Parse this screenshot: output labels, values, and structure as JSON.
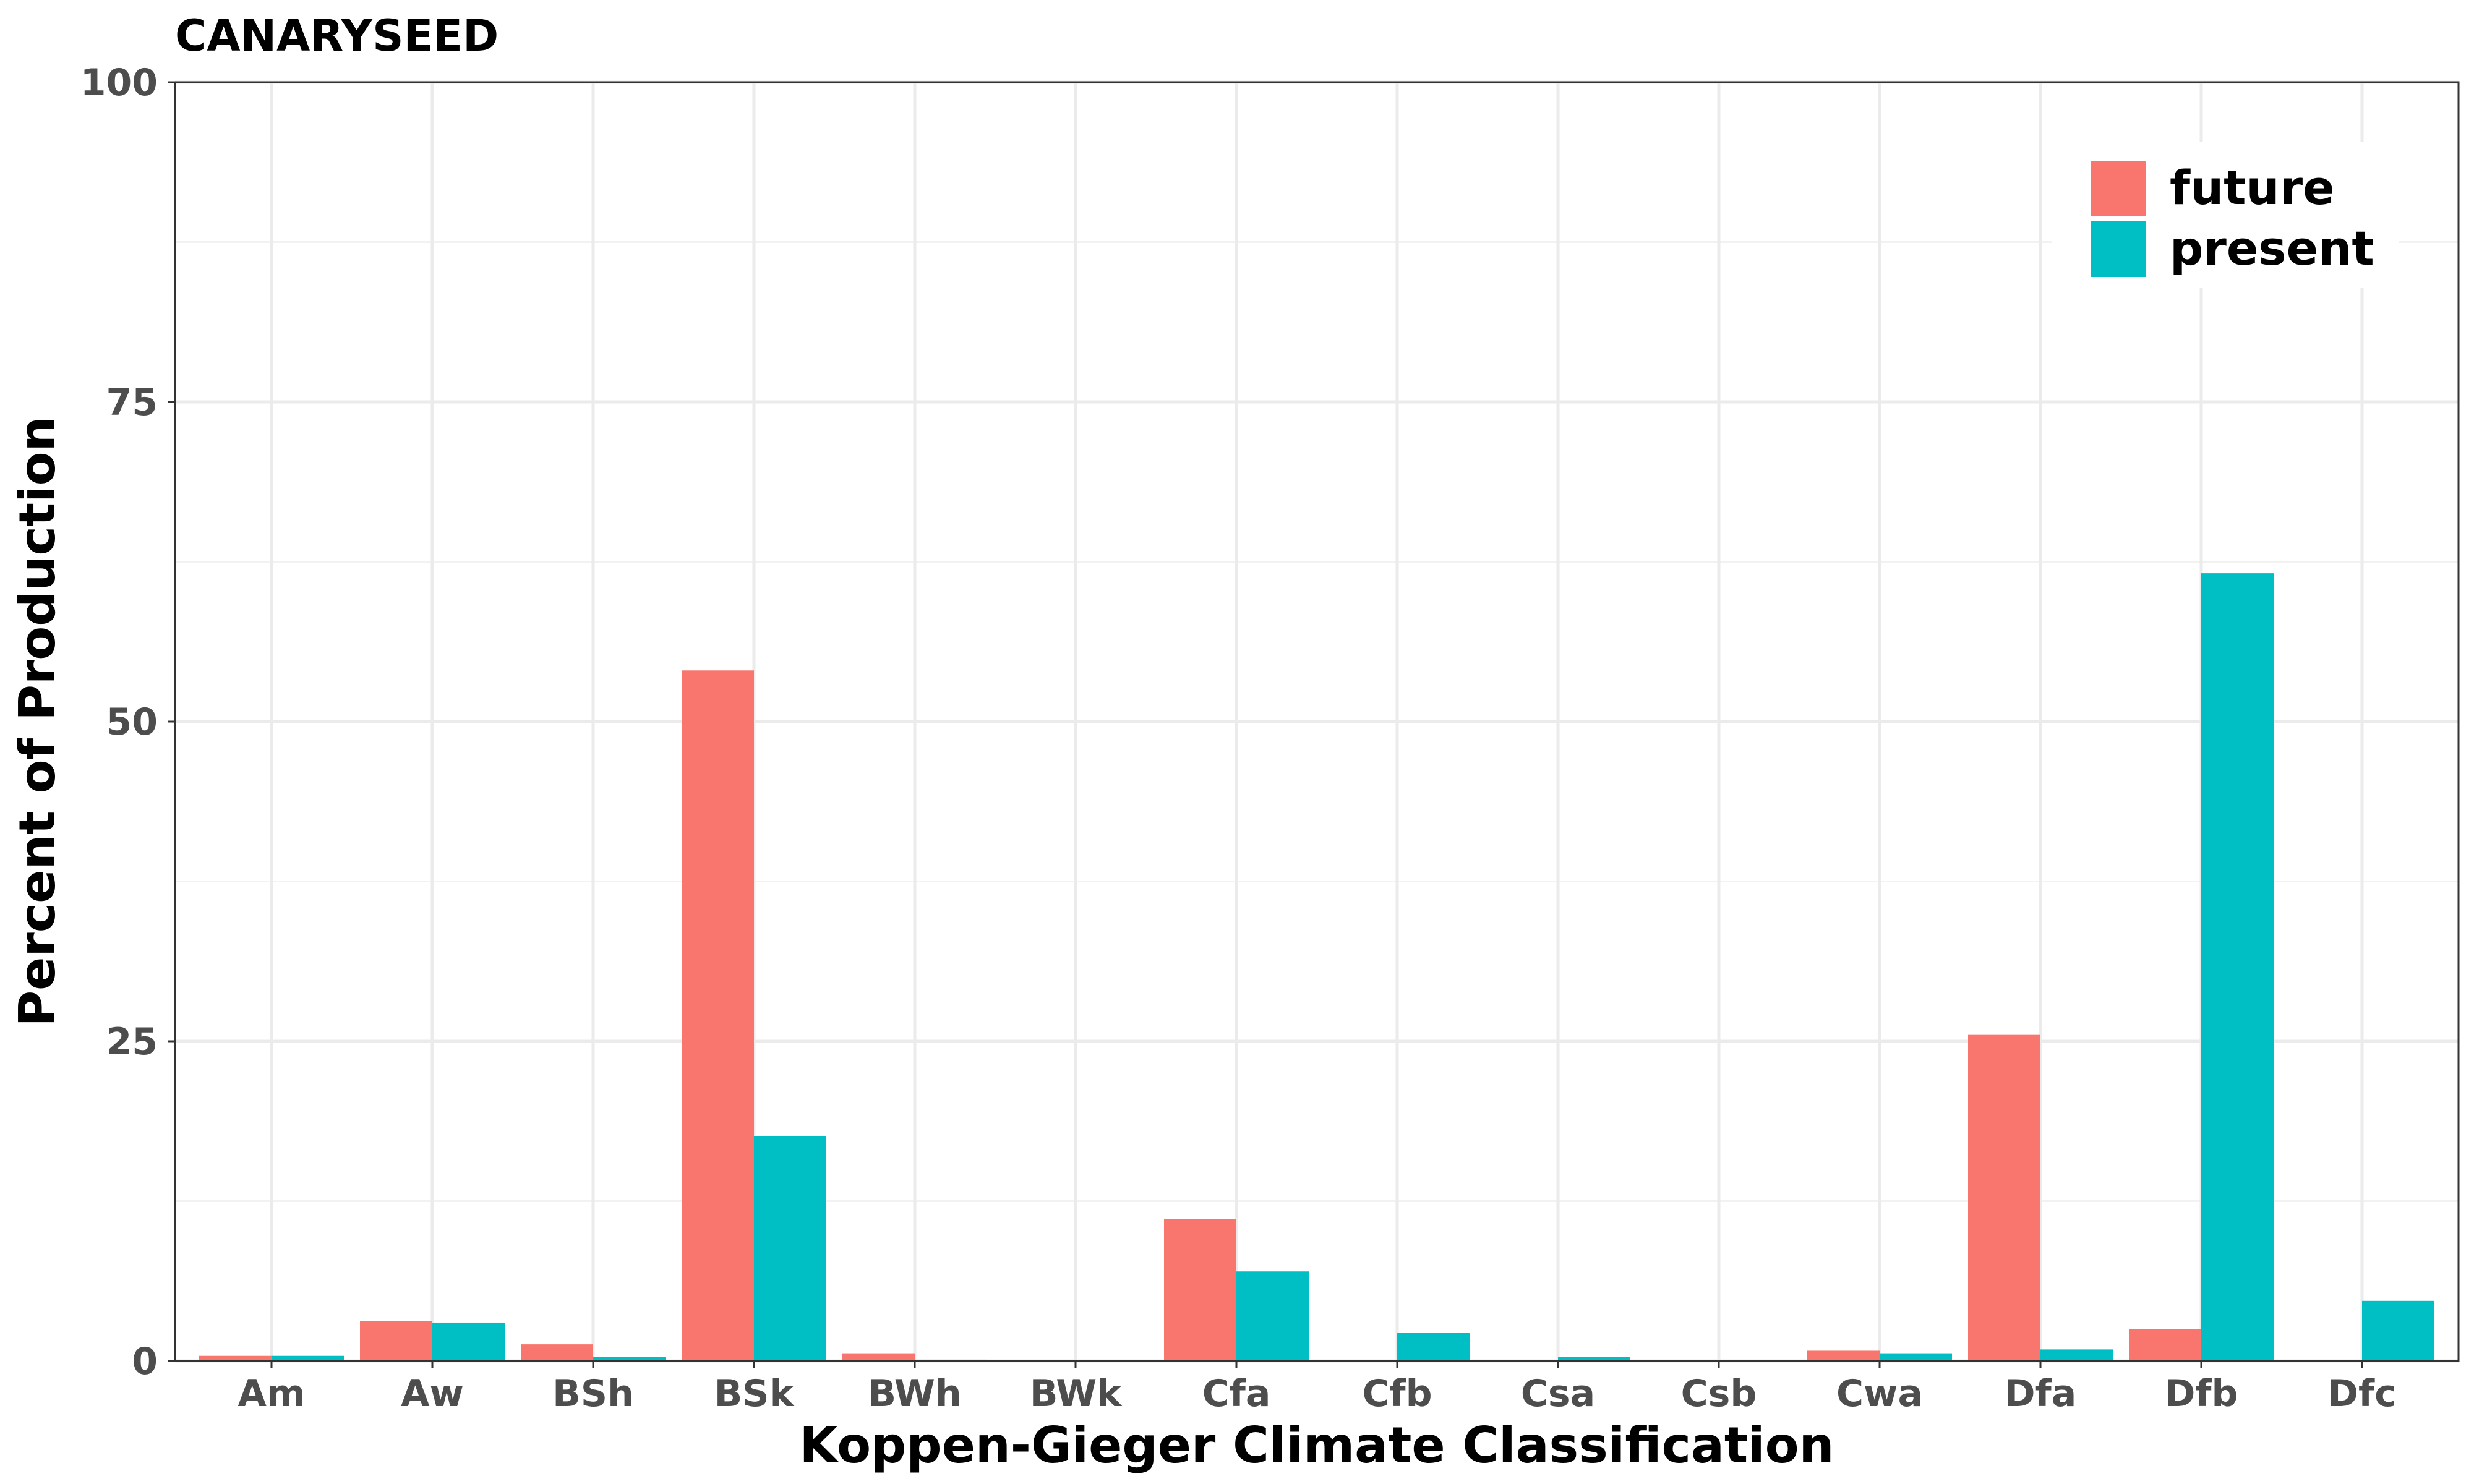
{
  "chart_data": {
    "type": "bar",
    "title": "CANARYSEED",
    "xlabel": "Koppen-Gieger Climate Classification",
    "ylabel": "Percent of Production",
    "categories": [
      "Am",
      "Aw",
      "BSh",
      "BSk",
      "BWh",
      "BWk",
      "Cfa",
      "Cfb",
      "Csa",
      "Csb",
      "Cwa",
      "Dfa",
      "Dfb",
      "Dfc"
    ],
    "series": [
      {
        "name": "future",
        "color": "#F8766D",
        "values": [
          0.4,
          3.1,
          1.3,
          54.0,
          0.6,
          0.0,
          11.1,
          0.0,
          0.0,
          0.0,
          0.8,
          25.5,
          2.5,
          0.0
        ]
      },
      {
        "name": "present",
        "color": "#00BFC4",
        "values": [
          0.4,
          3.0,
          0.3,
          17.6,
          0.1,
          0.0,
          7.0,
          2.2,
          0.3,
          0.0,
          0.6,
          0.9,
          61.6,
          4.7
        ]
      }
    ],
    "ylim": [
      0,
      100
    ],
    "yticks": [
      0,
      25,
      50,
      75,
      100
    ],
    "grid": true,
    "legend_position": "top-right"
  }
}
